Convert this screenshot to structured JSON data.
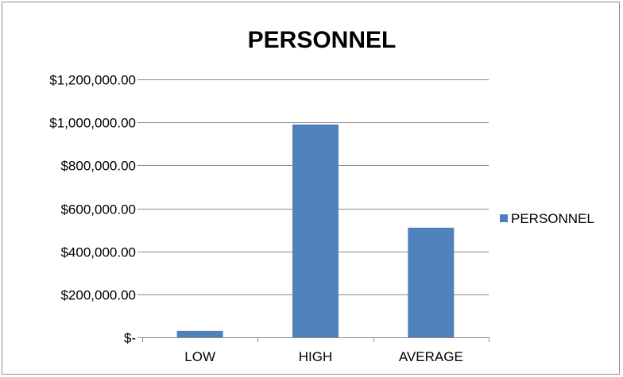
{
  "chart_data": {
    "type": "bar",
    "title": "PERSONNEL",
    "xlabel": "",
    "ylabel": "",
    "categories": [
      "LOW",
      "HIGH",
      "AVERAGE"
    ],
    "series": [
      {
        "name": "PERSONNEL",
        "values": [
          30000,
          990000,
          510000
        ]
      }
    ],
    "ylim": [
      0,
      1200000
    ],
    "y_ticks": [
      0,
      200000,
      400000,
      600000,
      800000,
      1000000,
      1200000
    ],
    "y_tick_labels": [
      "$-",
      "$200,000.00",
      "$400,000.00",
      "$600,000.00",
      "$800,000.00",
      "$1,000,000.00",
      "$1,200,000.00"
    ],
    "grid": true,
    "legend_position": "right",
    "colors": {
      "bar": "#4f81bd",
      "grid": "#8c8c8c",
      "axis": "#8c8c8c"
    }
  }
}
